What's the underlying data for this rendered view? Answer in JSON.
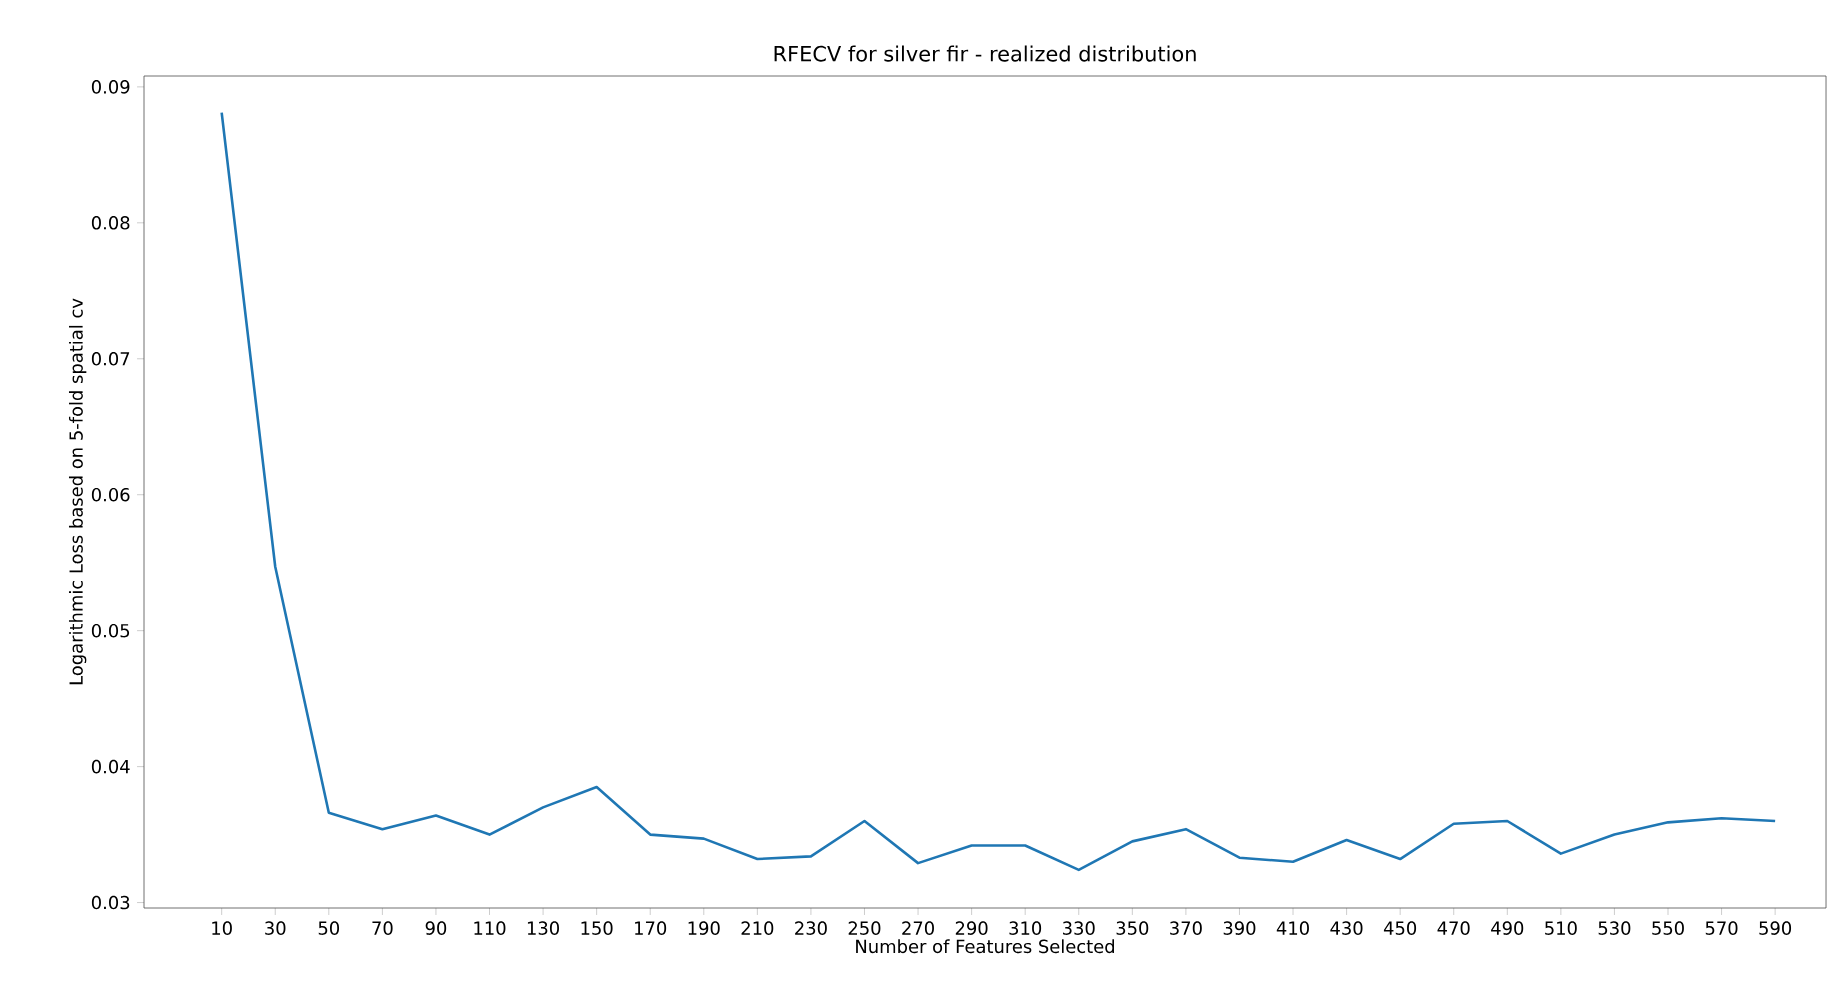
{
  "chart_data": {
    "type": "line",
    "title": "RFECV for silver fir - realized distribution",
    "xlabel": "Number of Features Selected",
    "ylabel": "Logarithmic Loss based on 5-fold spatial cv",
    "x": [
      10,
      30,
      50,
      70,
      90,
      110,
      130,
      150,
      170,
      190,
      210,
      230,
      250,
      270,
      290,
      310,
      330,
      350,
      370,
      390,
      410,
      430,
      450,
      470,
      490,
      510,
      530,
      550,
      570,
      590
    ],
    "series": [
      {
        "color": "#1f77b4",
        "values": [
          0.0881,
          0.0547,
          0.0366,
          0.0354,
          0.0364,
          0.035,
          0.037,
          0.0385,
          0.035,
          0.0347,
          0.0332,
          0.0334,
          0.036,
          0.0329,
          0.0342,
          0.0342,
          0.0324,
          0.0345,
          0.0354,
          0.0333,
          0.033,
          0.0346,
          0.0332,
          0.0358,
          0.036,
          0.0336,
          0.035,
          0.0359,
          0.0362,
          0.036
        ]
      }
    ],
    "xlim": [
      -19,
      609
    ],
    "ylim": [
      0.0296,
      0.0908
    ],
    "xticks": [
      10,
      30,
      50,
      70,
      90,
      110,
      130,
      150,
      170,
      190,
      210,
      230,
      250,
      270,
      290,
      310,
      330,
      350,
      370,
      390,
      410,
      430,
      450,
      470,
      490,
      510,
      530,
      550,
      570,
      590
    ],
    "yticks": [
      0.03,
      0.04,
      0.05,
      0.06,
      0.07,
      0.08,
      0.09
    ]
  }
}
